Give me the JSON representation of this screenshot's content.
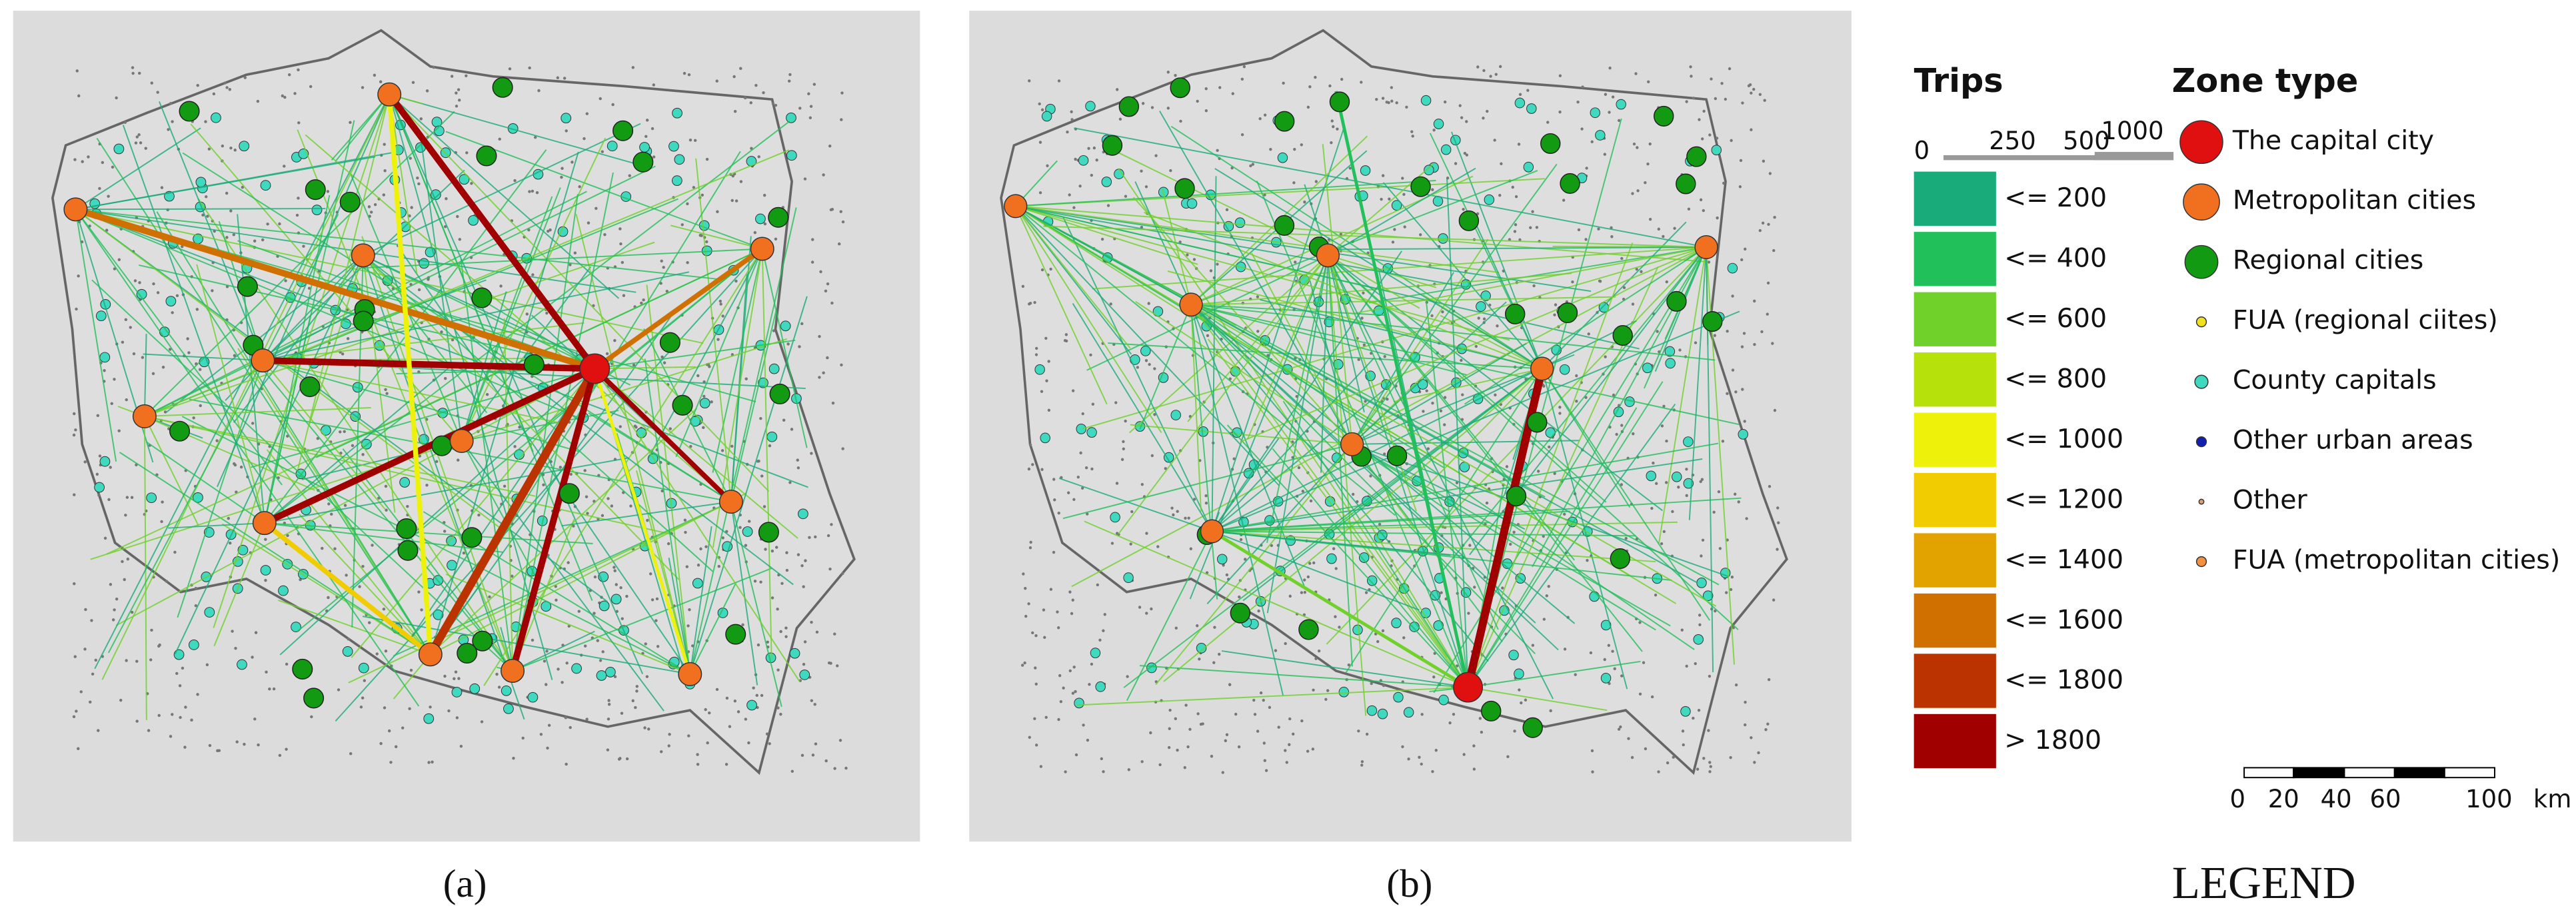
{
  "panels": [
    {
      "label": "(a)"
    },
    {
      "label": "(b)"
    }
  ],
  "legend": {
    "title": "LEGEND",
    "trips": {
      "title": "Trips",
      "scale_labels": [
        "0",
        "250",
        "500",
        "1000"
      ],
      "classes": [
        "<= 200",
        "<= 400",
        "<= 600",
        "<= 800",
        "<= 1000",
        "<= 1200",
        "<= 1400",
        "<= 1600",
        "<= 1800",
        "> 1800"
      ]
    },
    "zone_type": {
      "title": "Zone type",
      "items": [
        "The capital city",
        "Metropolitan cities",
        "Regional cities",
        "FUA (regional ciites)",
        "County capitals",
        "Other urban areas",
        "Other",
        "FUA (metropolitan cities)"
      ]
    },
    "scale_bar": {
      "labels": [
        "0",
        "20",
        "40",
        "60",
        "100"
      ],
      "unit": "km"
    }
  }
}
